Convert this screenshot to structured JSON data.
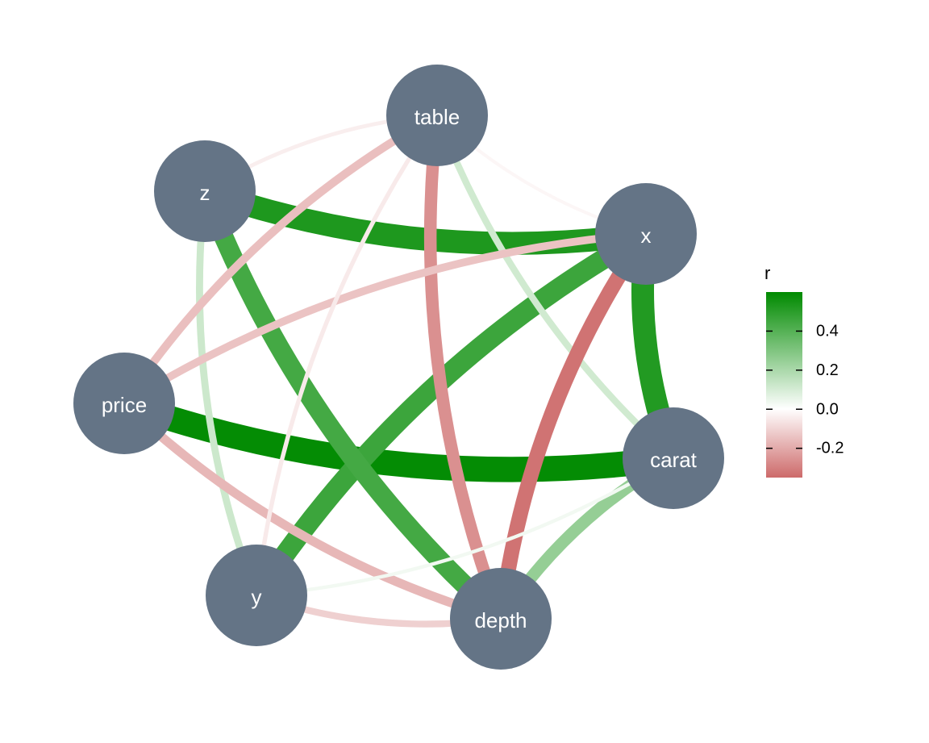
{
  "nodes": [
    {
      "id": "table",
      "label": "table"
    },
    {
      "id": "z",
      "label": "z"
    },
    {
      "id": "x",
      "label": "x"
    },
    {
      "id": "price",
      "label": "price"
    },
    {
      "id": "carat",
      "label": "carat"
    },
    {
      "id": "y",
      "label": "y"
    },
    {
      "id": "depth",
      "label": "depth"
    }
  ],
  "edges": [
    {
      "source": "price",
      "target": "carat",
      "r": 0.59
    },
    {
      "source": "z",
      "target": "x",
      "r": 0.53
    },
    {
      "source": "x",
      "target": "carat",
      "r": 0.52
    },
    {
      "source": "x",
      "target": "y",
      "r": 0.46
    },
    {
      "source": "z",
      "target": "depth",
      "r": 0.44
    },
    {
      "source": "carat",
      "target": "depth",
      "r": 0.25
    },
    {
      "source": "z",
      "target": "y",
      "r": 0.12
    },
    {
      "source": "table",
      "target": "carat",
      "r": 0.11
    },
    {
      "source": "x",
      "target": "depth",
      "r": -0.33
    },
    {
      "source": "table",
      "target": "depth",
      "r": -0.26
    },
    {
      "source": "price",
      "target": "depth",
      "r": -0.17
    },
    {
      "source": "table",
      "target": "price",
      "r": -0.15
    },
    {
      "source": "x",
      "target": "price",
      "r": -0.14
    },
    {
      "source": "y",
      "target": "depth",
      "r": -0.11
    },
    {
      "source": "table",
      "target": "y",
      "r": -0.05
    },
    {
      "source": "table",
      "target": "z",
      "r": -0.04
    },
    {
      "source": "y",
      "target": "carat",
      "r": 0.03
    },
    {
      "source": "table",
      "target": "x",
      "r": -0.02
    }
  ],
  "legend": {
    "title": "r",
    "ticks": [
      "0.4",
      "0.2",
      "0.0",
      "-0.2"
    ],
    "tick_values": [
      0.4,
      0.2,
      0.0,
      -0.2
    ],
    "range": [
      -0.35,
      0.6
    ]
  },
  "colors": {
    "node": "#647486",
    "positive": "#008a00",
    "negative": "#cd6a6a",
    "neutral": "#ffffff"
  }
}
